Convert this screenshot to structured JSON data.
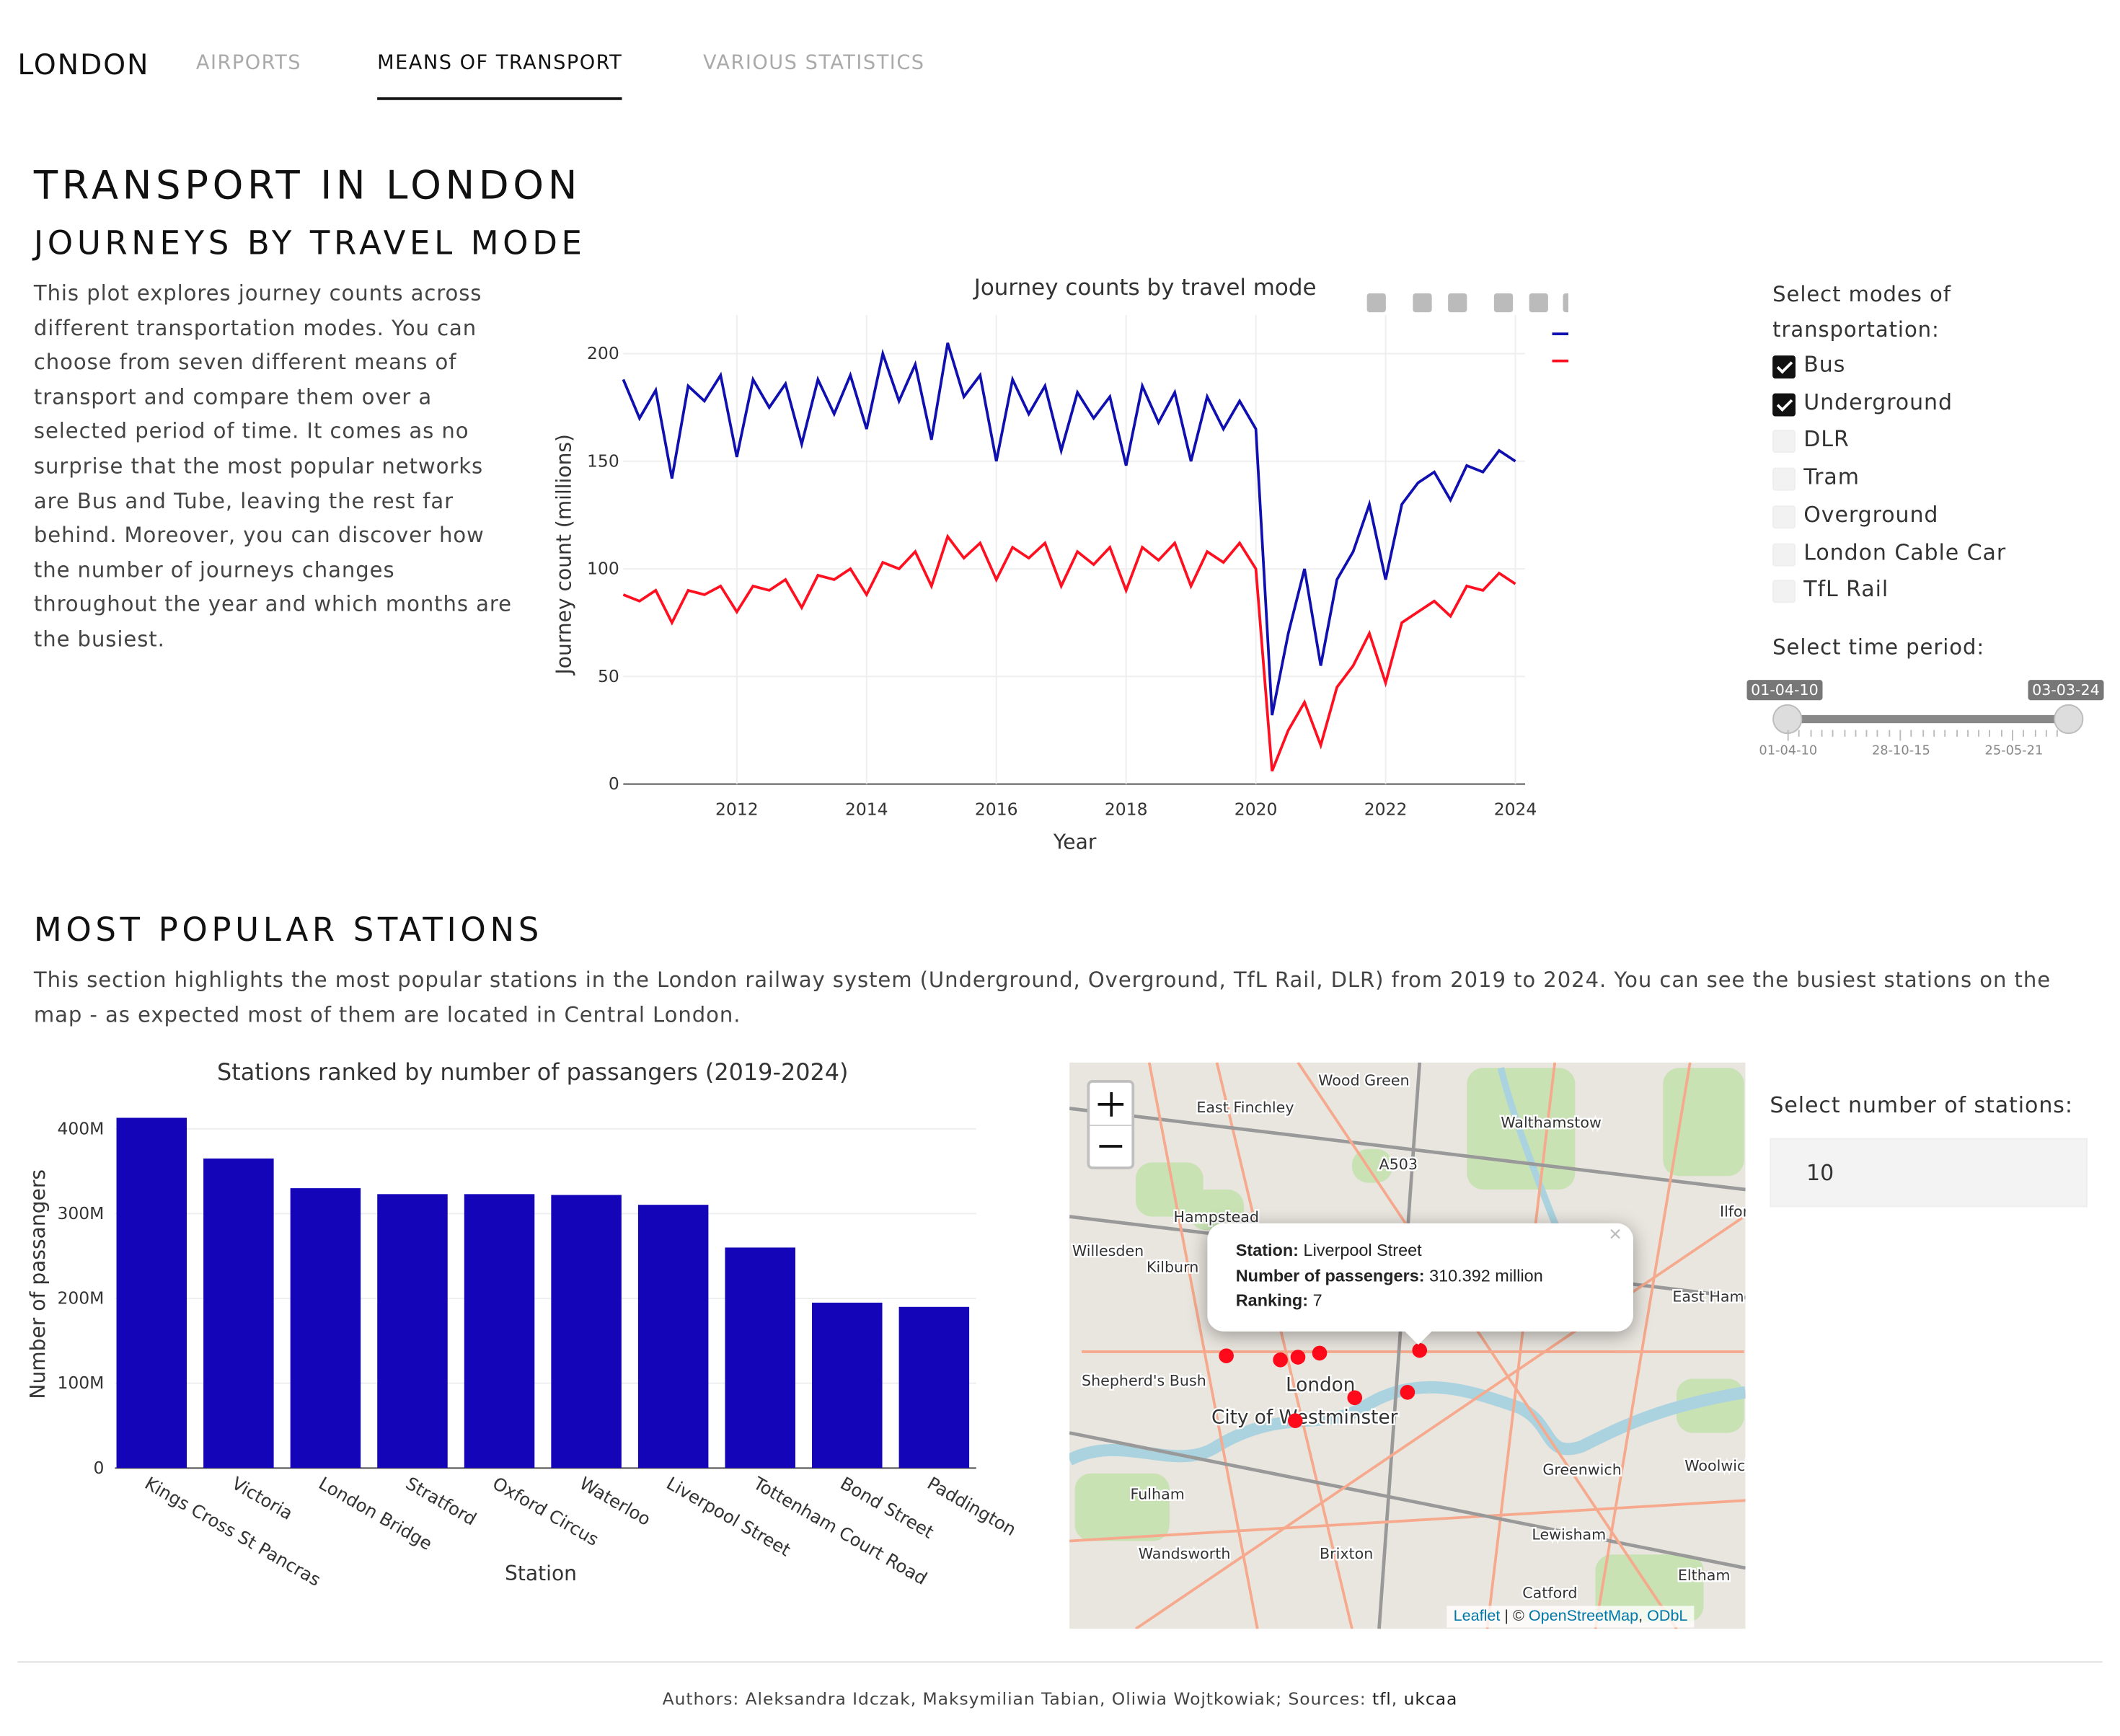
{
  "nav": {
    "brand": "LONDON",
    "tabs": [
      "AIRPORTS",
      "MEANS OF TRANSPORT",
      "VARIOUS STATISTICS"
    ],
    "active": 1
  },
  "header": {
    "title": "TRANSPORT IN LONDON"
  },
  "journeys": {
    "heading": "JOURNEYS BY TRAVEL MODE",
    "text": "This plot explores journey counts across different transportation modes. You can choose from seven different means of transport and compare them over a selected period of time. It comes as no surprise that the most popular networks are Bus and Tube, leaving the rest far behind. Moreover, you can discover how the number of journeys changes throughout the year and which months are the busiest."
  },
  "controls": {
    "modes_label": "Select modes of transportation:",
    "modes": [
      {
        "name": "Bus",
        "checked": true
      },
      {
        "name": "Underground",
        "checked": true
      },
      {
        "name": "DLR",
        "checked": false
      },
      {
        "name": "Tram",
        "checked": false
      },
      {
        "name": "Overground",
        "checked": false
      },
      {
        "name": "London Cable Car",
        "checked": false
      },
      {
        "name": "TfL Rail",
        "checked": false
      }
    ],
    "period_label": "Select time period:",
    "period_start": "01-04-10",
    "period_end": "03-03-24",
    "period_marks": [
      "01-04-10",
      "28-10-15",
      "25-05-21"
    ]
  },
  "stations": {
    "heading": "MOST POPULAR STATIONS",
    "text": "This section highlights the most popular stations in the London railway system (Underground, Overground, TfL Rail, DLR) from 2019 to 2024. You can see the busiest stations on the map - as expected most of them are located in Central London.",
    "count_label": "Select number of stations:",
    "count": "10"
  },
  "map": {
    "labels": [
      "Wood Green",
      "East Finchley",
      "Walthamstow",
      "A503",
      "Hampstead",
      "Willesden",
      "Kilburn",
      "Ilford",
      "East Ham",
      "Shepherd's Bush",
      "London",
      "City of Westminster",
      "Greenwich",
      "Woolwich",
      "Fulham",
      "Wandsworth",
      "Brixton",
      "Lewisham",
      "Eltham",
      "Catford"
    ],
    "popup": {
      "station_label": "Station:",
      "station": "Liverpool Street",
      "passengers_label": "Number of passengers:",
      "passengers": "310.392 million",
      "ranking_label": "Ranking:",
      "ranking": "7"
    },
    "attribution": [
      "Leaflet",
      "| ©",
      "OpenStreetMap",
      ",",
      "ODbL"
    ]
  },
  "footer": {
    "text": "Authors: Aleksandra Idczak, Maksymilian Tabian, Oliwia Wojtkowiak; Sources:",
    "links": [
      "tfl",
      "ukcaa"
    ],
    "separator": ","
  },
  "chart_data": [
    {
      "type": "line",
      "title": "Journey counts by travel mode",
      "x_label": "Year",
      "y_label": "Journey count (millions)",
      "x": [
        2010.25,
        2010.5,
        2010.75,
        2011,
        2011.25,
        2011.5,
        2011.75,
        2012,
        2012.25,
        2012.5,
        2012.75,
        2013,
        2013.25,
        2013.5,
        2013.75,
        2014,
        2014.25,
        2014.5,
        2014.75,
        2015,
        2015.25,
        2015.5,
        2015.75,
        2016,
        2016.25,
        2016.5,
        2016.75,
        2017,
        2017.25,
        2017.5,
        2017.75,
        2018,
        2018.25,
        2018.5,
        2018.75,
        2019,
        2019.25,
        2019.5,
        2019.75,
        2020,
        2020.25,
        2020.5,
        2020.75,
        2021,
        2021.25,
        2021.5,
        2021.75,
        2022,
        2022.25,
        2022.5,
        2022.75,
        2023,
        2023.25,
        2023.5,
        2023.75,
        2024
      ],
      "series": [
        {
          "name": "Bus",
          "color": "#1010b0",
          "values": [
            188,
            170,
            183,
            142,
            185,
            178,
            190,
            152,
            188,
            175,
            186,
            158,
            188,
            172,
            190,
            165,
            200,
            178,
            195,
            160,
            205,
            180,
            190,
            150,
            188,
            172,
            185,
            155,
            182,
            170,
            180,
            148,
            185,
            168,
            182,
            150,
            180,
            165,
            178,
            165,
            32,
            70,
            100,
            55,
            95,
            108,
            130,
            95,
            130,
            140,
            145,
            132,
            148,
            145,
            155,
            150
          ]
        },
        {
          "name": "Underground",
          "color": "#ff1020",
          "values": [
            88,
            85,
            90,
            75,
            90,
            88,
            92,
            80,
            92,
            90,
            95,
            82,
            97,
            95,
            100,
            88,
            103,
            100,
            108,
            92,
            115,
            105,
            112,
            95,
            110,
            105,
            112,
            92,
            108,
            102,
            110,
            90,
            110,
            104,
            112,
            92,
            108,
            103,
            112,
            100,
            6,
            25,
            38,
            18,
            45,
            55,
            70,
            47,
            75,
            80,
            85,
            78,
            92,
            90,
            98,
            93
          ]
        }
      ],
      "xlim": [
        2010.25,
        2024.15
      ],
      "ylim": [
        0,
        218
      ],
      "xticks": [
        2012,
        2014,
        2016,
        2018,
        2020,
        2022,
        2024
      ],
      "yticks": [
        0,
        50,
        100,
        150,
        200
      ],
      "grid": true,
      "legend": "top-right"
    },
    {
      "type": "bar",
      "title": "Stations ranked by number of passangers (2019-2024)",
      "x_label": "Station",
      "y_label": "Number of passangers",
      "categories": [
        "Kings Cross St Pancras",
        "Victoria",
        "London Bridge",
        "Stratford",
        "Oxford Circus",
        "Waterloo",
        "Liverpool Street",
        "Tottenham Court Road",
        "Bond Street",
        "Paddington"
      ],
      "values": [
        413000000,
        365000000,
        330000000,
        323000000,
        323000000,
        322000000,
        310392000,
        260000000,
        195000000,
        190000000
      ],
      "color": "#1505b8",
      "ylim": [
        0,
        440000000
      ],
      "yticks": [
        0,
        {
          "value": 100000000,
          "label": "100M"
        },
        {
          "value": 200000000,
          "label": "200M"
        },
        {
          "value": 300000000,
          "label": "300M"
        },
        {
          "value": 400000000,
          "label": "400M"
        }
      ],
      "grid": true
    }
  ]
}
